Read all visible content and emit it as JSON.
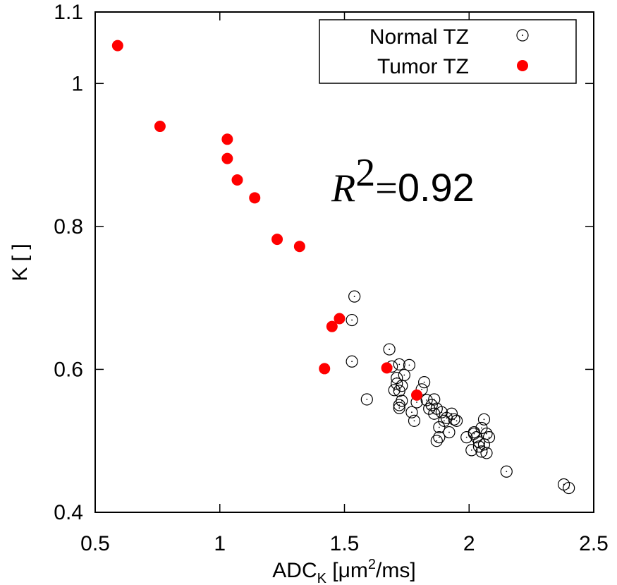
{
  "chart_data": {
    "type": "scatter",
    "xlabel": {
      "main": "ADC",
      "sub": "K",
      "pre_unit": " [",
      "unit_mu": "μ",
      "unit_m": "m",
      "sup": "2",
      "post": "/ms]"
    },
    "ylabel": "K [ ]",
    "xlim": [
      0.5,
      2.5
    ],
    "ylim": [
      0.4,
      1.1
    ],
    "xticks": [
      0.5,
      1,
      1.5,
      2,
      2.5
    ],
    "xtick_labels": [
      "0.5",
      "1",
      "1.5",
      "2",
      "2.5"
    ],
    "yticks": [
      0.4,
      0.6,
      0.8,
      1.0,
      1.1
    ],
    "ytick_labels": [
      "0.4",
      "0.6",
      "0.8",
      "1",
      "1.1"
    ],
    "legend_position": "top-right",
    "annotation": {
      "var": "R",
      "sup": "2",
      "eq": "=",
      "value": "0.92"
    },
    "series": [
      {
        "name": "Normal TZ",
        "marker": "open-circle-dot",
        "color": "#000000",
        "x": [
          1.54,
          1.53,
          1.53,
          1.59,
          1.68,
          1.69,
          1.72,
          1.71,
          1.73,
          1.74,
          1.76,
          1.7,
          1.71,
          1.72,
          1.72,
          1.72,
          1.73,
          1.77,
          1.78,
          1.79,
          1.81,
          1.82,
          1.83,
          1.84,
          1.85,
          1.86,
          1.86,
          1.87,
          1.88,
          1.89,
          1.9,
          1.91,
          1.92,
          1.93,
          1.94,
          1.95,
          1.88,
          1.87,
          1.99,
          2.01,
          2.02,
          2.03,
          2.04,
          2.05,
          2.06,
          2.07,
          2.08,
          2.06,
          2.04,
          2.02,
          2.05,
          2.07,
          2.15,
          2.38,
          2.4
        ],
        "y": [
          0.702,
          0.669,
          0.611,
          0.558,
          0.628,
          0.604,
          0.607,
          0.588,
          0.577,
          0.592,
          0.606,
          0.571,
          0.58,
          0.57,
          0.55,
          0.546,
          0.556,
          0.54,
          0.528,
          0.554,
          0.572,
          0.582,
          0.557,
          0.545,
          0.55,
          0.558,
          0.538,
          0.545,
          0.519,
          0.54,
          0.528,
          0.532,
          0.512,
          0.538,
          0.53,
          0.528,
          0.505,
          0.5,
          0.505,
          0.487,
          0.512,
          0.505,
          0.492,
          0.518,
          0.53,
          0.51,
          0.505,
          0.495,
          0.498,
          0.51,
          0.485,
          0.483,
          0.457,
          0.439,
          0.434
        ]
      },
      {
        "name": "Tumor TZ",
        "marker": "filled-circle",
        "color": "#ff0000",
        "x": [
          0.59,
          0.76,
          1.03,
          1.03,
          1.07,
          1.14,
          1.23,
          1.32,
          1.42,
          1.45,
          1.48,
          1.67,
          1.79
        ],
        "y": [
          1.053,
          0.94,
          0.922,
          0.895,
          0.865,
          0.84,
          0.782,
          0.772,
          0.601,
          0.66,
          0.671,
          0.602,
          0.564
        ]
      }
    ]
  }
}
